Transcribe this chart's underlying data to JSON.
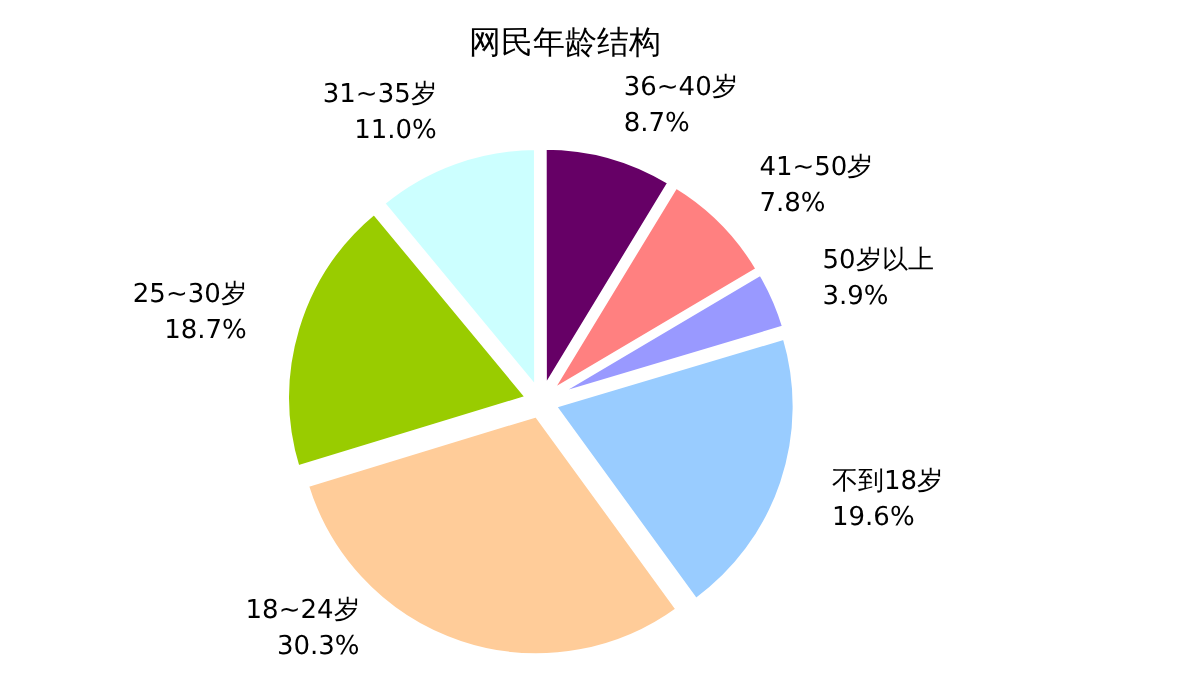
{
  "chart_data": {
    "type": "pie",
    "title": "网民年龄结构",
    "categories": [
      "不到18岁",
      "18~24岁",
      "25~30岁",
      "31~35岁",
      "36~40岁",
      "41~50岁",
      "50岁以上"
    ],
    "values": [
      19.6,
      30.3,
      18.7,
      11.0,
      8.7,
      7.8,
      3.9
    ],
    "value_labels": [
      "19.6%",
      "30.3%",
      "18.7%",
      "11.0%",
      "8.7%",
      "7.8%",
      "3.9%"
    ],
    "colors": [
      "#99ccff",
      "#ffcc99",
      "#99cc00",
      "#ccffff",
      "#660066",
      "#ff8080",
      "#9999ff"
    ]
  }
}
